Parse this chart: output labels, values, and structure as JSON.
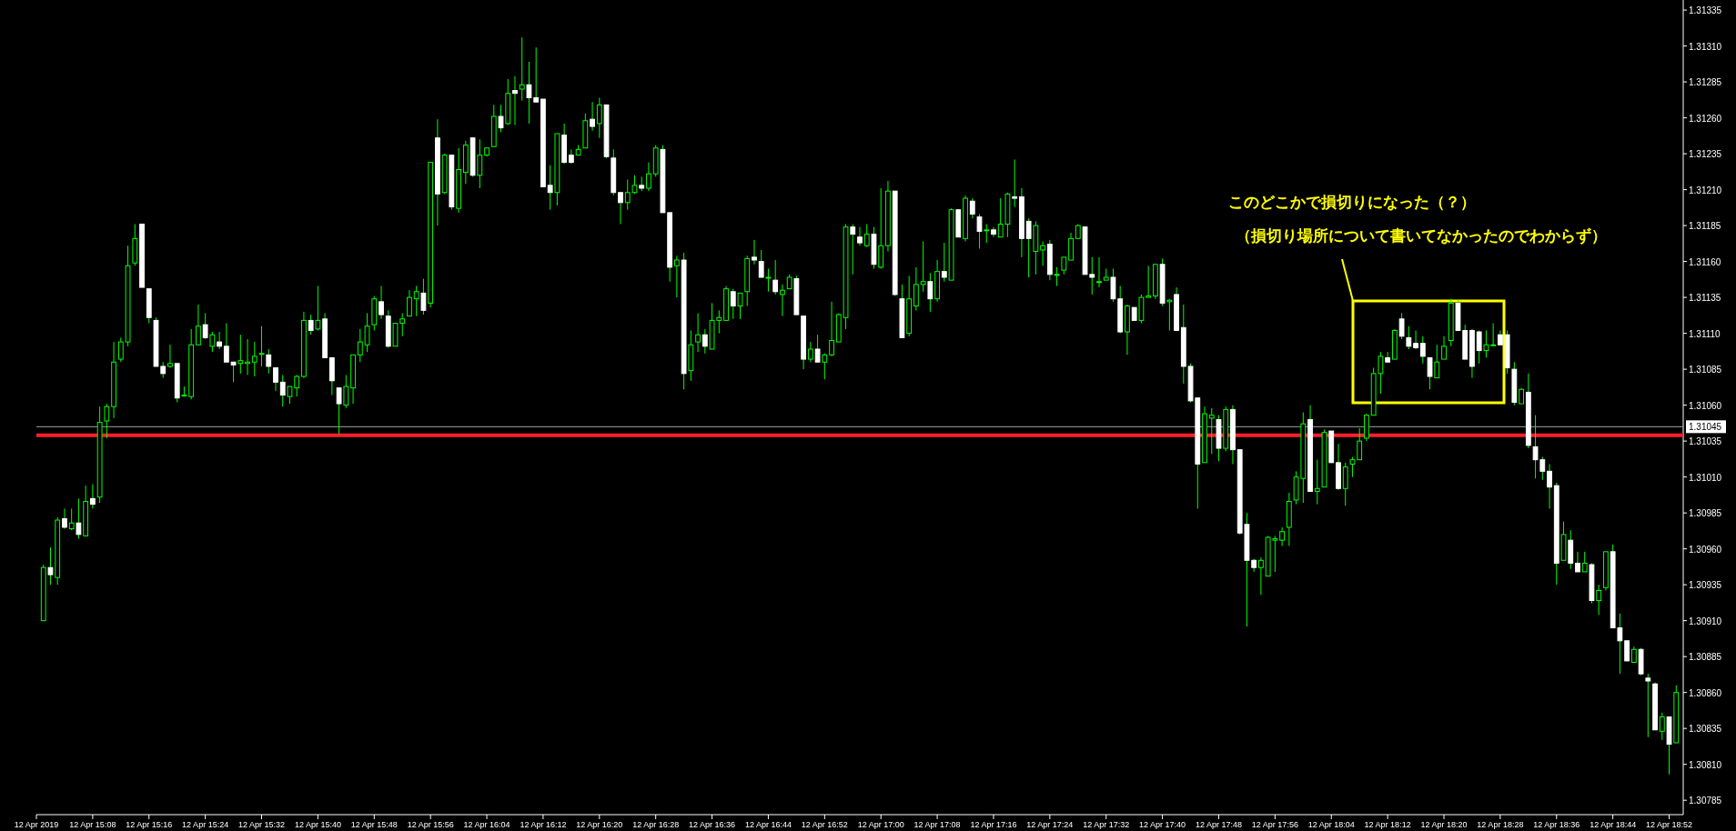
{
  "chart_data": {
    "type": "candlestick",
    "xlim": [
      "2019-04-12T15:00",
      "2019-04-12T18:54"
    ],
    "ylim": [
      1.30775,
      1.31342
    ],
    "xticks": [
      {
        "value": "2019-04-12T15:00",
        "label": "12 Apr 2019"
      },
      {
        "value": "2019-04-12T15:08",
        "label": "12 Apr 15:08"
      },
      {
        "value": "2019-04-12T15:16",
        "label": "12 Apr 15:16"
      },
      {
        "value": "2019-04-12T15:24",
        "label": "12 Apr 15:24"
      },
      {
        "value": "2019-04-12T15:32",
        "label": "12 Apr 15:32"
      },
      {
        "value": "2019-04-12T15:40",
        "label": "12 Apr 15:40"
      },
      {
        "value": "2019-04-12T15:48",
        "label": "12 Apr 15:48"
      },
      {
        "value": "2019-04-12T15:56",
        "label": "12 Apr 15:56"
      },
      {
        "value": "2019-04-12T16:04",
        "label": "12 Apr 16:04"
      },
      {
        "value": "2019-04-12T16:12",
        "label": "12 Apr 16:12"
      },
      {
        "value": "2019-04-12T16:20",
        "label": "12 Apr 16:20"
      },
      {
        "value": "2019-04-12T16:28",
        "label": "12 Apr 16:28"
      },
      {
        "value": "2019-04-12T16:36",
        "label": "12 Apr 16:36"
      },
      {
        "value": "2019-04-12T16:44",
        "label": "12 Apr 16:44"
      },
      {
        "value": "2019-04-12T16:52",
        "label": "12 Apr 16:52"
      },
      {
        "value": "2019-04-12T17:00",
        "label": "12 Apr 17:00"
      },
      {
        "value": "2019-04-12T17:08",
        "label": "12 Apr 17:08"
      },
      {
        "value": "2019-04-12T17:16",
        "label": "12 Apr 17:16"
      },
      {
        "value": "2019-04-12T17:24",
        "label": "12 Apr 17:24"
      },
      {
        "value": "2019-04-12T17:32",
        "label": "12 Apr 17:32"
      },
      {
        "value": "2019-04-12T17:40",
        "label": "12 Apr 17:40"
      },
      {
        "value": "2019-04-12T17:48",
        "label": "12 Apr 17:48"
      },
      {
        "value": "2019-04-12T17:56",
        "label": "12 Apr 17:56"
      },
      {
        "value": "2019-04-12T18:04",
        "label": "12 Apr 18:04"
      },
      {
        "value": "2019-04-12T18:12",
        "label": "12 Apr 18:12"
      },
      {
        "value": "2019-04-12T18:20",
        "label": "12 Apr 18:20"
      },
      {
        "value": "2019-04-12T18:28",
        "label": "12 Apr 18:28"
      },
      {
        "value": "2019-04-12T18:36",
        "label": "12 Apr 18:36"
      },
      {
        "value": "2019-04-12T18:44",
        "label": "12 Apr 18:44"
      },
      {
        "value": "2019-04-12T18:52",
        "label": "12 Apr 18:52"
      }
    ],
    "yticks": [
      1.31335,
      {
        "value": 1.3131,
        "label": "1.31310"
      },
      1.31285,
      {
        "value": 1.3126,
        "label": "1.31260"
      },
      1.31235,
      {
        "value": 1.3121,
        "label": "1.31210"
      },
      1.31185,
      {
        "value": 1.3116,
        "label": "1.31160"
      },
      1.31135,
      {
        "value": 1.3111,
        "label": "1.31110"
      },
      1.31085,
      {
        "value": 1.3106,
        "label": "1.31060"
      },
      1.31035,
      {
        "value": 1.3101,
        "label": "1.31010"
      },
      1.30985,
      {
        "value": 1.3096,
        "label": "1.30960"
      },
      1.30935,
      {
        "value": 1.3091,
        "label": "1.30910"
      },
      1.30885,
      {
        "value": 1.3086,
        "label": "1.30860"
      },
      1.30835,
      {
        "value": 1.3081,
        "label": "1.30810"
      },
      1.30785
    ],
    "ref_lines": [
      {
        "axis": "y",
        "value": 1.31045,
        "label": "1.31045",
        "color": "#a0a0a0"
      },
      {
        "axis": "y",
        "value": 1.31039,
        "color": "#ff1e2d"
      }
    ],
    "annotations": [
      "このどこかで損切りになった（？）",
      "（損切り場所について書いてなかったのでわからず）"
    ],
    "x": [
      "2019-04-12T15:01",
      "2019-04-12T15:02",
      "2019-04-12T15:03",
      "2019-04-12T15:04",
      "2019-04-12T15:05",
      "2019-04-12T15:06",
      "2019-04-12T15:07",
      "2019-04-12T15:08",
      "2019-04-12T15:09",
      "2019-04-12T15:10",
      "2019-04-12T15:11",
      "2019-04-12T15:12",
      "2019-04-12T15:13",
      "2019-04-12T15:14",
      "2019-04-12T15:15",
      "2019-04-12T15:16",
      "2019-04-12T15:17",
      "2019-04-12T15:18",
      "2019-04-12T15:19",
      "2019-04-12T15:20",
      "2019-04-12T15:21",
      "2019-04-12T15:22",
      "2019-04-12T15:23",
      "2019-04-12T15:24",
      "2019-04-12T15:25",
      "2019-04-12T15:26",
      "2019-04-12T15:27",
      "2019-04-12T15:28",
      "2019-04-12T15:29",
      "2019-04-12T15:30",
      "2019-04-12T15:31",
      "2019-04-12T15:32",
      "2019-04-12T15:33",
      "2019-04-12T15:34",
      "2019-04-12T15:35",
      "2019-04-12T15:36",
      "2019-04-12T15:37",
      "2019-04-12T15:38",
      "2019-04-12T15:39",
      "2019-04-12T15:40",
      "2019-04-12T15:41",
      "2019-04-12T15:42",
      "2019-04-12T15:43",
      "2019-04-12T15:44",
      "2019-04-12T15:45",
      "2019-04-12T15:46",
      "2019-04-12T15:47",
      "2019-04-12T15:48",
      "2019-04-12T15:49",
      "2019-04-12T15:50",
      "2019-04-12T15:51",
      "2019-04-12T15:52",
      "2019-04-12T15:53",
      "2019-04-12T15:54",
      "2019-04-12T15:55",
      "2019-04-12T15:56",
      "2019-04-12T15:57",
      "2019-04-12T15:58",
      "2019-04-12T15:59",
      "2019-04-12T16:00",
      "2019-04-12T16:01",
      "2019-04-12T16:02",
      "2019-04-12T16:03",
      "2019-04-12T16:04",
      "2019-04-12T16:05",
      "2019-04-12T16:06",
      "2019-04-12T16:07",
      "2019-04-12T16:08",
      "2019-04-12T16:09",
      "2019-04-12T16:10",
      "2019-04-12T16:11",
      "2019-04-12T16:12",
      "2019-04-12T16:13",
      "2019-04-12T16:14",
      "2019-04-12T16:15",
      "2019-04-12T16:16",
      "2019-04-12T16:17",
      "2019-04-12T16:18",
      "2019-04-12T16:19",
      "2019-04-12T16:20",
      "2019-04-12T16:21",
      "2019-04-12T16:22",
      "2019-04-12T16:23",
      "2019-04-12T16:24",
      "2019-04-12T16:25",
      "2019-04-12T16:26",
      "2019-04-12T16:27",
      "2019-04-12T16:28",
      "2019-04-12T16:29",
      "2019-04-12T16:30",
      "2019-04-12T16:31",
      "2019-04-12T16:32",
      "2019-04-12T16:33",
      "2019-04-12T16:34",
      "2019-04-12T16:35",
      "2019-04-12T16:36",
      "2019-04-12T16:37",
      "2019-04-12T16:38",
      "2019-04-12T16:39",
      "2019-04-12T16:40",
      "2019-04-12T16:41",
      "2019-04-12T16:42",
      "2019-04-12T16:43",
      "2019-04-12T16:44",
      "2019-04-12T16:45",
      "2019-04-12T16:46",
      "2019-04-12T16:47",
      "2019-04-12T16:48",
      "2019-04-12T16:49",
      "2019-04-12T16:50",
      "2019-04-12T16:51",
      "2019-04-12T16:52",
      "2019-04-12T16:53",
      "2019-04-12T16:54",
      "2019-04-12T16:55",
      "2019-04-12T16:56",
      "2019-04-12T16:57",
      "2019-04-12T16:58",
      "2019-04-12T16:59",
      "2019-04-12T17:00",
      "2019-04-12T17:01",
      "2019-04-12T17:02",
      "2019-04-12T17:03",
      "2019-04-12T17:04",
      "2019-04-12T17:05",
      "2019-04-12T17:06",
      "2019-04-12T17:07",
      "2019-04-12T17:08",
      "2019-04-12T17:09",
      "2019-04-12T17:10",
      "2019-04-12T17:11",
      "2019-04-12T17:12",
      "2019-04-12T17:13",
      "2019-04-12T17:14",
      "2019-04-12T17:15",
      "2019-04-12T17:16",
      "2019-04-12T17:17",
      "2019-04-12T17:18",
      "2019-04-12T17:19",
      "2019-04-12T17:20",
      "2019-04-12T17:21",
      "2019-04-12T17:22",
      "2019-04-12T17:23",
      "2019-04-12T17:24",
      "2019-04-12T17:25",
      "2019-04-12T17:26",
      "2019-04-12T17:27",
      "2019-04-12T17:28",
      "2019-04-12T17:29",
      "2019-04-12T17:30",
      "2019-04-12T17:31",
      "2019-04-12T17:32",
      "2019-04-12T17:33",
      "2019-04-12T17:34",
      "2019-04-12T17:35",
      "2019-04-12T17:36",
      "2019-04-12T17:37",
      "2019-04-12T17:38",
      "2019-04-12T17:39",
      "2019-04-12T17:40",
      "2019-04-12T17:41",
      "2019-04-12T17:42",
      "2019-04-12T17:43",
      "2019-04-12T17:44",
      "2019-04-12T17:45",
      "2019-04-12T17:46",
      "2019-04-12T17:47",
      "2019-04-12T17:48",
      "2019-04-12T17:49",
      "2019-04-12T17:50",
      "2019-04-12T17:51",
      "2019-04-12T17:52",
      "2019-04-12T17:53",
      "2019-04-12T17:54",
      "2019-04-12T17:55",
      "2019-04-12T17:56",
      "2019-04-12T17:57",
      "2019-04-12T17:58",
      "2019-04-12T17:59",
      "2019-04-12T18:00",
      "2019-04-12T18:01",
      "2019-04-12T18:02",
      "2019-04-12T18:03",
      "2019-04-12T18:04",
      "2019-04-12T18:05",
      "2019-04-12T18:06",
      "2019-04-12T18:07",
      "2019-04-12T18:08",
      "2019-04-12T18:09",
      "2019-04-12T18:10",
      "2019-04-12T18:11",
      "2019-04-12T18:12",
      "2019-04-12T18:13",
      "2019-04-12T18:14",
      "2019-04-12T18:15",
      "2019-04-12T18:16",
      "2019-04-12T18:17",
      "2019-04-12T18:18",
      "2019-04-12T18:19",
      "2019-04-12T18:20",
      "2019-04-12T18:21",
      "2019-04-12T18:22",
      "2019-04-12T18:23",
      "2019-04-12T18:24",
      "2019-04-12T18:25",
      "2019-04-12T18:26",
      "2019-04-12T18:27",
      "2019-04-12T18:28",
      "2019-04-12T18:29",
      "2019-04-12T18:30",
      "2019-04-12T18:31",
      "2019-04-12T18:32",
      "2019-04-12T18:33",
      "2019-04-12T18:34",
      "2019-04-12T18:35",
      "2019-04-12T18:36",
      "2019-04-12T18:37",
      "2019-04-12T18:38",
      "2019-04-12T18:39",
      "2019-04-12T18:40",
      "2019-04-12T18:41",
      "2019-04-12T18:42",
      "2019-04-12T18:43",
      "2019-04-12T18:44",
      "2019-04-12T18:45",
      "2019-04-12T18:46",
      "2019-04-12T18:47",
      "2019-04-12T18:48",
      "2019-04-12T18:49",
      "2019-04-12T18:50",
      "2019-04-12T18:51",
      "2019-04-12T18:52",
      "2019-04-12T18:53"
    ],
    "ohlc": [
      [
        1.3091,
        1.30949,
        1.3091,
        1.30947
      ],
      [
        1.30947,
        1.30961,
        1.30935,
        1.30942
      ],
      [
        1.3094,
        1.30982,
        1.30935,
        1.3098
      ],
      [
        1.30981,
        1.30988,
        1.30974,
        1.30975
      ],
      [
        1.30974,
        1.30988,
        1.30973,
        1.30978
      ],
      [
        1.30978,
        1.30995,
        1.30967,
        1.3097
      ],
      [
        1.30969,
        1.31004,
        1.30969,
        1.30993
      ],
      [
        1.30995,
        1.31005,
        1.30988,
        1.30991
      ],
      [
        1.30996,
        1.31059,
        1.30992,
        1.31048
      ],
      [
        1.31049,
        1.31061,
        1.31037,
        1.31059
      ],
      [
        1.31059,
        1.31104,
        1.31051,
        1.3109
      ],
      [
        1.31092,
        1.31107,
        1.3109,
        1.31104
      ],
      [
        1.31104,
        1.31171,
        1.31101,
        1.31157
      ],
      [
        1.31159,
        1.31186,
        1.31157,
        1.31176
      ],
      [
        1.31186,
        1.31186,
        1.31142,
        1.31142
      ],
      [
        1.31141,
        1.31141,
        1.31117,
        1.31121
      ],
      [
        1.31119,
        1.31121,
        1.31087,
        1.31087
      ],
      [
        1.31087,
        1.3109,
        1.31079,
        1.31082
      ],
      [
        1.31087,
        1.31102,
        1.31086,
        1.31089
      ],
      [
        1.31089,
        1.31089,
        1.31062,
        1.31065
      ],
      [
        1.31067,
        1.31073,
        1.31066,
        1.31067
      ],
      [
        1.31066,
        1.31113,
        1.31064,
        1.31102
      ],
      [
        1.31102,
        1.3113,
        1.31102,
        1.31115
      ],
      [
        1.31116,
        1.31124,
        1.31106,
        1.31107
      ],
      [
        1.31101,
        1.31111,
        1.31097,
        1.31109
      ],
      [
        1.31104,
        1.31111,
        1.31099,
        1.31101
      ],
      [
        1.31101,
        1.31117,
        1.3109,
        1.3109
      ],
      [
        1.3109,
        1.3109,
        1.31076,
        1.31088
      ],
      [
        1.31089,
        1.31109,
        1.31082,
        1.31091
      ],
      [
        1.31089,
        1.31106,
        1.31081,
        1.3109
      ],
      [
        1.3109,
        1.31104,
        1.3108,
        1.31094
      ],
      [
        1.31096,
        1.31115,
        1.31087,
        1.31096
      ],
      [
        1.31095,
        1.31099,
        1.31082,
        1.31087
      ],
      [
        1.31086,
        1.31086,
        1.3107,
        1.31076
      ],
      [
        1.31076,
        1.31081,
        1.31059,
        1.31067
      ],
      [
        1.31066,
        1.31073,
        1.31061,
        1.31073
      ],
      [
        1.31072,
        1.31081,
        1.31066,
        1.3108
      ],
      [
        1.3108,
        1.31125,
        1.31079,
        1.31119
      ],
      [
        1.31119,
        1.31123,
        1.31109,
        1.31112
      ],
      [
        1.31113,
        1.31143,
        1.31112,
        1.31119
      ],
      [
        1.3112,
        1.31124,
        1.31093,
        1.31093
      ],
      [
        1.31093,
        1.31093,
        1.31067,
        1.31077
      ],
      [
        1.31072,
        1.31072,
        1.3104,
        1.31061
      ],
      [
        1.3106,
        1.31081,
        1.31058,
        1.31073
      ],
      [
        1.31072,
        1.31095,
        1.31061,
        1.31095
      ],
      [
        1.31095,
        1.31113,
        1.3109,
        1.31104
      ],
      [
        1.31102,
        1.31124,
        1.31097,
        1.31115
      ],
      [
        1.31116,
        1.31136,
        1.31112,
        1.31134
      ],
      [
        1.31132,
        1.31143,
        1.3112,
        1.31123
      ],
      [
        1.31122,
        1.31126,
        1.311,
        1.31101
      ],
      [
        1.31101,
        1.31117,
        1.31101,
        1.31117
      ],
      [
        1.31117,
        1.31124,
        1.31108,
        1.3112
      ],
      [
        1.31122,
        1.3114,
        1.31122,
        1.31135
      ],
      [
        1.31134,
        1.31143,
        1.31122,
        1.31139
      ],
      [
        1.31138,
        1.31148,
        1.31123,
        1.31126
      ],
      [
        1.31131,
        1.31229,
        1.31128,
        1.31229
      ],
      [
        1.31246,
        1.31259,
        1.31185,
        1.31207
      ],
      [
        1.31208,
        1.31235,
        1.31207,
        1.31234
      ],
      [
        1.31234,
        1.31234,
        1.31196,
        1.31198
      ],
      [
        1.31197,
        1.31239,
        1.31194,
        1.31224
      ],
      [
        1.31222,
        1.31244,
        1.31214,
        1.31241
      ],
      [
        1.31246,
        1.31246,
        1.31219,
        1.3122
      ],
      [
        1.3122,
        1.31245,
        1.31211,
        1.31234
      ],
      [
        1.31234,
        1.31239,
        1.31233,
        1.31239
      ],
      [
        1.3124,
        1.31269,
        1.3124,
        1.31261
      ],
      [
        1.31261,
        1.31269,
        1.3125,
        1.31253
      ],
      [
        1.31256,
        1.31287,
        1.31255,
        1.31277
      ],
      [
        1.31279,
        1.31289,
        1.31255,
        1.31277
      ],
      [
        1.3128,
        1.31316,
        1.31272,
        1.31283
      ],
      [
        1.31283,
        1.31299,
        1.31256,
        1.31274
      ],
      [
        1.31274,
        1.31309,
        1.31271,
        1.31271
      ],
      [
        1.31273,
        1.31273,
        1.31212,
        1.31212
      ],
      [
        1.31213,
        1.31227,
        1.31196,
        1.31208
      ],
      [
        1.31208,
        1.31249,
        1.31199,
        1.31249
      ],
      [
        1.31248,
        1.31256,
        1.31228,
        1.31229
      ],
      [
        1.31234,
        1.31238,
        1.31228,
        1.31229
      ],
      [
        1.31234,
        1.31241,
        1.31234,
        1.31238
      ],
      [
        1.31239,
        1.31263,
        1.31239,
        1.31258
      ],
      [
        1.31259,
        1.31271,
        1.31251,
        1.31254
      ],
      [
        1.31256,
        1.31274,
        1.31246,
        1.31269
      ],
      [
        1.31269,
        1.31269,
        1.31232,
        1.31233
      ],
      [
        1.31232,
        1.31238,
        1.31206,
        1.31208
      ],
      [
        1.31208,
        1.31208,
        1.31186,
        1.31201
      ],
      [
        1.31201,
        1.31217,
        1.31196,
        1.31208
      ],
      [
        1.31208,
        1.3122,
        1.31207,
        1.31213
      ],
      [
        1.31213,
        1.31219,
        1.31209,
        1.31211
      ],
      [
        1.31211,
        1.31229,
        1.31209,
        1.31221
      ],
      [
        1.31221,
        1.31241,
        1.31219,
        1.31239
      ],
      [
        1.31238,
        1.31241,
        1.31194,
        1.31194
      ],
      [
        1.31194,
        1.31194,
        1.31146,
        1.31156
      ],
      [
        1.31157,
        1.31164,
        1.31135,
        1.31161
      ],
      [
        1.31161,
        1.31166,
        1.31071,
        1.31082
      ],
      [
        1.31084,
        1.31112,
        1.31077,
        1.31102
      ],
      [
        1.31104,
        1.31124,
        1.31097,
        1.31109
      ],
      [
        1.31109,
        1.31113,
        1.31096,
        1.31101
      ],
      [
        1.31099,
        1.31131,
        1.31099,
        1.31119
      ],
      [
        1.31119,
        1.31126,
        1.3111,
        1.31121
      ],
      [
        1.31119,
        1.31143,
        1.31119,
        1.31141
      ],
      [
        1.31139,
        1.31141,
        1.3112,
        1.31129
      ],
      [
        1.31129,
        1.31138,
        1.3112,
        1.31138
      ],
      [
        1.31139,
        1.31164,
        1.31129,
        1.31162
      ],
      [
        1.31163,
        1.31175,
        1.31158,
        1.31161
      ],
      [
        1.3116,
        1.31168,
        1.31149,
        1.31149
      ],
      [
        1.31149,
        1.31155,
        1.31139,
        1.31149
      ],
      [
        1.31147,
        1.31161,
        1.31137,
        1.31139
      ],
      [
        1.31137,
        1.31144,
        1.31122,
        1.3114
      ],
      [
        1.31141,
        1.31151,
        1.31141,
        1.31149
      ],
      [
        1.31148,
        1.3115,
        1.31123,
        1.31123
      ],
      [
        1.31122,
        1.31122,
        1.31085,
        1.31092
      ],
      [
        1.31092,
        1.31104,
        1.3109,
        1.31099
      ],
      [
        1.31099,
        1.31109,
        1.3109,
        1.3109
      ],
      [
        1.3109,
        1.31096,
        1.31078,
        1.31095
      ],
      [
        1.31095,
        1.31132,
        1.31094,
        1.31105
      ],
      [
        1.31104,
        1.31124,
        1.31104,
        1.31123
      ],
      [
        1.31121,
        1.31186,
        1.31113,
        1.31184
      ],
      [
        1.31184,
        1.31186,
        1.31151,
        1.31179
      ],
      [
        1.31177,
        1.31184,
        1.31171,
        1.31173
      ],
      [
        1.31171,
        1.31186,
        1.3117,
        1.31179
      ],
      [
        1.31179,
        1.31184,
        1.31155,
        1.31158
      ],
      [
        1.31156,
        1.31211,
        1.31155,
        1.31171
      ],
      [
        1.31171,
        1.31216,
        1.31167,
        1.31209
      ],
      [
        1.31209,
        1.31209,
        1.31136,
        1.31137
      ],
      [
        1.31134,
        1.31144,
        1.31107,
        1.31107
      ],
      [
        1.3111,
        1.3115,
        1.31108,
        1.31134
      ],
      [
        1.31129,
        1.31156,
        1.31126,
        1.31144
      ],
      [
        1.31144,
        1.31174,
        1.31139,
        1.31146
      ],
      [
        1.31146,
        1.31152,
        1.31125,
        1.31134
      ],
      [
        1.31134,
        1.31161,
        1.31132,
        1.31153
      ],
      [
        1.31153,
        1.31173,
        1.31146,
        1.31149
      ],
      [
        1.31147,
        1.31197,
        1.31147,
        1.31196
      ],
      [
        1.31196,
        1.31196,
        1.31177,
        1.31177
      ],
      [
        1.31176,
        1.31206,
        1.31174,
        1.31204
      ],
      [
        1.31202,
        1.31204,
        1.3119,
        1.31193
      ],
      [
        1.31191,
        1.31193,
        1.31169,
        1.31181
      ],
      [
        1.31182,
        1.31186,
        1.31173,
        1.31182
      ],
      [
        1.31182,
        1.31184,
        1.31177,
        1.31179
      ],
      [
        1.31177,
        1.31204,
        1.31177,
        1.31186
      ],
      [
        1.31186,
        1.31208,
        1.31177,
        1.31207
      ],
      [
        1.31205,
        1.31231,
        1.31198,
        1.31204
      ],
      [
        1.31205,
        1.31211,
        1.31163,
        1.31176
      ],
      [
        1.31188,
        1.3119,
        1.31149,
        1.31176
      ],
      [
        1.31167,
        1.31188,
        1.31151,
        1.31185
      ],
      [
        1.31168,
        1.31174,
        1.31157,
        1.31171
      ],
      [
        1.31172,
        1.31175,
        1.31147,
        1.31151
      ],
      [
        1.31151,
        1.31156,
        1.31143,
        1.31151
      ],
      [
        1.31154,
        1.31163,
        1.31151,
        1.31163
      ],
      [
        1.31161,
        1.3118,
        1.31161,
        1.31176
      ],
      [
        1.31176,
        1.31186,
        1.31176,
        1.31185
      ],
      [
        1.31184,
        1.31184,
        1.31151,
        1.31151
      ],
      [
        1.31151,
        1.31163,
        1.31137,
        1.31149
      ],
      [
        1.31146,
        1.31163,
        1.31142,
        1.31146
      ],
      [
        1.31147,
        1.31155,
        1.31147,
        1.31149
      ],
      [
        1.31149,
        1.31155,
        1.31132,
        1.31134
      ],
      [
        1.31134,
        1.31143,
        1.3111,
        1.31111
      ],
      [
        1.31111,
        1.3113,
        1.31095,
        1.31129
      ],
      [
        1.31128,
        1.31128,
        1.31119,
        1.31119
      ],
      [
        1.31119,
        1.31137,
        1.31117,
        1.31135
      ],
      [
        1.31135,
        1.31157,
        1.31135,
        1.31136
      ],
      [
        1.31136,
        1.31158,
        1.31134,
        1.31158
      ],
      [
        1.31158,
        1.31162,
        1.31129,
        1.31131
      ],
      [
        1.31132,
        1.31134,
        1.31112,
        1.31133
      ],
      [
        1.31137,
        1.31142,
        1.31112,
        1.31112
      ],
      [
        1.31114,
        1.3113,
        1.31075,
        1.31087
      ],
      [
        1.31087,
        1.31089,
        1.31062,
        1.31063
      ],
      [
        1.31065,
        1.31065,
        1.30988,
        1.31019
      ],
      [
        1.3102,
        1.31059,
        1.3102,
        1.31054
      ],
      [
        1.31051,
        1.31058,
        1.31026,
        1.31053
      ],
      [
        1.3105,
        1.31053,
        1.31021,
        1.3103
      ],
      [
        1.3103,
        1.31059,
        1.31028,
        1.31057
      ],
      [
        1.31057,
        1.3106,
        1.31019,
        1.31029
      ],
      [
        1.31029,
        1.31029,
        1.3097,
        1.30971
      ],
      [
        1.30977,
        1.30985,
        1.30906,
        1.30952
      ],
      [
        1.30952,
        1.30953,
        1.30944,
        1.30947
      ],
      [
        1.30947,
        1.30954,
        1.30928,
        1.30952
      ],
      [
        1.30941,
        1.30969,
        1.30941,
        1.30968
      ],
      [
        1.30966,
        1.30969,
        1.30944,
        1.30967
      ],
      [
        1.30966,
        1.30975,
        1.30962,
        1.30972
      ],
      [
        1.30975,
        1.30999,
        1.30962,
        1.30993
      ],
      [
        1.30994,
        1.31014,
        1.30991,
        1.3101
      ],
      [
        1.31009,
        1.31055,
        1.30992,
        1.31047
      ],
      [
        1.3105,
        1.3106,
        1.31,
        1.31
      ],
      [
        1.31,
        1.31022,
        1.30991,
        1.31002
      ],
      [
        1.31003,
        1.31043,
        1.31003,
        1.31041
      ],
      [
        1.31042,
        1.31042,
        1.3102,
        1.3102
      ],
      [
        1.3102,
        1.31033,
        1.31001,
        1.31002
      ],
      [
        1.31002,
        1.3102,
        1.3099,
        1.31017
      ],
      [
        1.31019,
        1.31024,
        1.3101,
        1.31022
      ],
      [
        1.31022,
        1.31044,
        1.31022,
        1.31035
      ],
      [
        1.31037,
        1.31054,
        1.31035,
        1.31053
      ],
      [
        1.31053,
        1.31086,
        1.31053,
        1.31082
      ],
      [
        1.31082,
        1.31097,
        1.31068,
        1.31094
      ],
      [
        1.31093,
        1.31097,
        1.3109,
        1.3109
      ],
      [
        1.31092,
        1.31113,
        1.31092,
        1.31112
      ],
      [
        1.3112,
        1.31124,
        1.31106,
        1.31108
      ],
      [
        1.31107,
        1.31115,
        1.31099,
        1.31101
      ],
      [
        1.31103,
        1.31112,
        1.31099,
        1.311
      ],
      [
        1.31103,
        1.31108,
        1.31089,
        1.31094
      ],
      [
        1.31093,
        1.31093,
        1.31071,
        1.3108
      ],
      [
        1.31079,
        1.31102,
        1.31079,
        1.3109
      ],
      [
        1.31092,
        1.31108,
        1.31092,
        1.31101
      ],
      [
        1.31105,
        1.31134,
        1.31101,
        1.31131
      ],
      [
        1.31131,
        1.31133,
        1.31112,
        1.31112
      ],
      [
        1.31112,
        1.31116,
        1.31092,
        1.31092
      ],
      [
        1.31112,
        1.31113,
        1.31079,
        1.31087
      ],
      [
        1.31111,
        1.31112,
        1.31089,
        1.31098
      ],
      [
        1.31098,
        1.31112,
        1.31093,
        1.31102
      ],
      [
        1.31102,
        1.31117,
        1.31102,
        1.31102
      ],
      [
        1.31109,
        1.31112,
        1.31102,
        1.31102
      ],
      [
        1.31109,
        1.31112,
        1.31082,
        1.31086
      ],
      [
        1.31085,
        1.3109,
        1.3106,
        1.31062
      ],
      [
        1.31061,
        1.31072,
        1.31061,
        1.31071
      ],
      [
        1.31069,
        1.31082,
        1.3103,
        1.31032
      ],
      [
        1.31031,
        1.31053,
        1.31009,
        1.31022
      ],
      [
        1.31022,
        1.31024,
        1.31008,
        1.31014
      ],
      [
        1.31014,
        1.31019,
        1.30988,
        1.31003
      ],
      [
        1.31004,
        1.31006,
        1.30935,
        1.3095
      ],
      [
        1.30952,
        1.30979,
        1.30952,
        1.3097
      ],
      [
        1.30966,
        1.30973,
        1.30946,
        1.3095
      ],
      [
        1.3095,
        1.30958,
        1.30944,
        1.30944
      ],
      [
        1.30944,
        1.30958,
        1.30944,
        1.3095
      ],
      [
        1.30949,
        1.3095,
        1.30922,
        1.30924
      ],
      [
        1.30924,
        1.30935,
        1.30914,
        1.30931
      ],
      [
        1.30933,
        1.30958,
        1.30931,
        1.30958
      ],
      [
        1.30958,
        1.30963,
        1.30905,
        1.30905
      ],
      [
        1.30905,
        1.30915,
        1.30873,
        1.30896
      ],
      [
        1.30896,
        1.30896,
        1.30882,
        1.30882
      ],
      [
        1.30881,
        1.30892,
        1.30881,
        1.3089
      ],
      [
        1.3089,
        1.30891,
        1.30872,
        1.30873
      ],
      [
        1.3087,
        1.30873,
        1.30829,
        1.30868
      ],
      [
        1.30866,
        1.30867,
        1.30834,
        1.30834
      ],
      [
        1.30833,
        1.30846,
        1.30827,
        1.30843
      ],
      [
        1.30843,
        1.30843,
        1.30803,
        1.30824
      ],
      [
        1.30825,
        1.30865,
        1.30825,
        1.3086
      ]
    ]
  }
}
